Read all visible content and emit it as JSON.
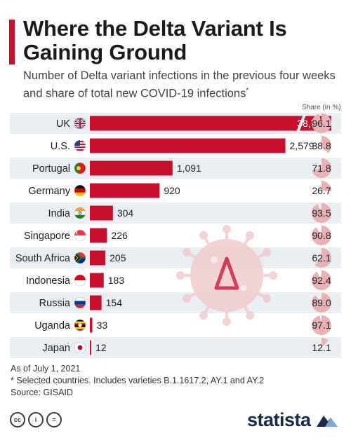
{
  "title": "Where the Delta Variant Is Gaining Ground",
  "subtitle": "Number of Delta variant infections in the previous four weeks and share of total new COVID-19 infections",
  "subtitle_mark": "*",
  "share_header": "Share (in %)",
  "colors": {
    "accent": "#c8102e",
    "bar": "#c8102e",
    "row_band": "#e9eef3",
    "share_circle": "#e8b1b5",
    "virus": "#f2c9cb"
  },
  "chart_data": {
    "type": "bar",
    "orientation": "horizontal",
    "categories": [
      "UK",
      "U.S.",
      "Portugal",
      "Germany",
      "India",
      "Singapore",
      "South Africa",
      "Indonesia",
      "Russia",
      "Uganda",
      "Japan"
    ],
    "value_labels": [
      "38,745",
      "2,579",
      "1,091",
      "920",
      "304",
      "226",
      "205",
      "183",
      "154",
      "33",
      "12"
    ],
    "series": [
      {
        "values": [
          38745,
          2579,
          1091,
          920,
          304,
          226,
          205,
          183,
          154,
          33,
          12
        ]
      },
      {
        "values": [
          96.1,
          38.8,
          71.8,
          26.7,
          93.5,
          90.8,
          62.1,
          92.4,
          89.0,
          97.1,
          12.1
        ]
      }
    ],
    "share_labels": [
      "96.1",
      "38.8",
      "71.8",
      "26.7",
      "93.5",
      "90.8",
      "62.1",
      "92.4",
      "89.0",
      "97.1",
      "12.1"
    ],
    "axis_break": true,
    "flags": [
      "uk-flag-icon",
      "us-flag-icon",
      "portugal-flag-icon",
      "germany-flag-icon",
      "india-flag-icon",
      "singapore-flag-icon",
      "south-africa-flag-icon",
      "indonesia-flag-icon",
      "russia-flag-icon",
      "uganda-flag-icon",
      "japan-flag-icon"
    ],
    "legend": "none",
    "grid": false
  },
  "footnotes": {
    "date": "As of July 1, 2021",
    "selected": "* Selected countries. Includes varieties B.1.1617.2, AY.1 and AY.2",
    "source": "Source: GISAID"
  },
  "license_icons": [
    "cc-icon",
    "attribution-icon",
    "no-derivatives-icon"
  ],
  "license_glyphs": [
    "cc",
    "i",
    "="
  ],
  "brand": "statista",
  "brand_icon": "statista-logo-icon"
}
